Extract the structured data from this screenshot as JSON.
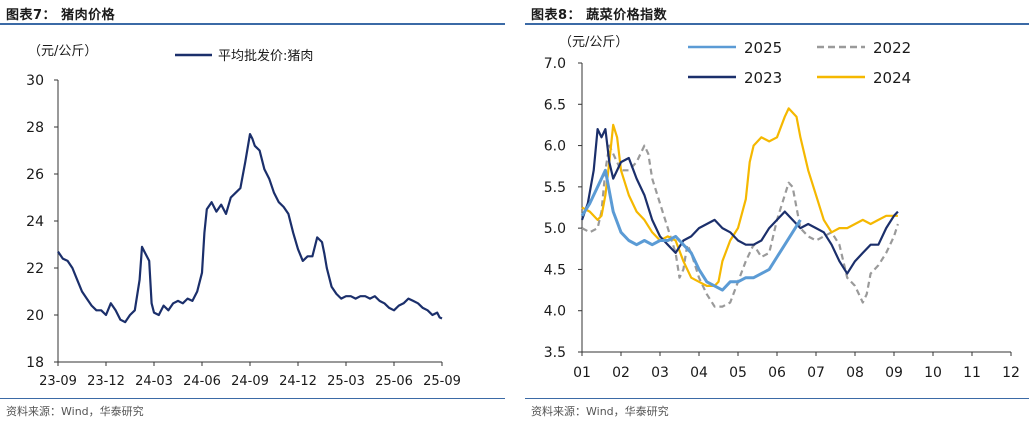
{
  "chart_data": [
    {
      "type": "line",
      "title": "图表7：  猪肉价格",
      "ylabel": "（元/公斤）",
      "source": "资料来源：Wind，华泰研究",
      "ylim": [
        18,
        30
      ],
      "y_ticks": [
        "18",
        "20",
        "22",
        "24",
        "26",
        "28",
        "30"
      ],
      "x_ticks": [
        "23-09",
        "23-12",
        "24-03",
        "24-06",
        "24-09",
        "24-12",
        "25-03",
        "25-06",
        "25-09"
      ],
      "legend": [
        "平均批发价:猪肉"
      ],
      "color": "#1b2f6b",
      "series": [
        {
          "name": "平均批发价:猪肉",
          "points": [
            [
              0.0,
              22.7
            ],
            [
              0.1,
              22.4
            ],
            [
              0.2,
              22.3
            ],
            [
              0.3,
              22.0
            ],
            [
              0.4,
              21.5
            ],
            [
              0.5,
              21.0
            ],
            [
              0.6,
              20.7
            ],
            [
              0.7,
              20.4
            ],
            [
              0.8,
              20.2
            ],
            [
              0.9,
              20.2
            ],
            [
              1.0,
              20.0
            ],
            [
              1.1,
              20.5
            ],
            [
              1.2,
              20.2
            ],
            [
              1.3,
              19.8
            ],
            [
              1.4,
              19.7
            ],
            [
              1.5,
              20.0
            ],
            [
              1.6,
              20.2
            ],
            [
              1.7,
              21.5
            ],
            [
              1.75,
              22.9
            ],
            [
              1.8,
              22.7
            ],
            [
              1.9,
              22.3
            ],
            [
              1.95,
              20.5
            ],
            [
              2.0,
              20.1
            ],
            [
              2.1,
              20.0
            ],
            [
              2.2,
              20.4
            ],
            [
              2.3,
              20.2
            ],
            [
              2.4,
              20.5
            ],
            [
              2.5,
              20.6
            ],
            [
              2.6,
              20.5
            ],
            [
              2.7,
              20.7
            ],
            [
              2.8,
              20.6
            ],
            [
              2.9,
              21.0
            ],
            [
              3.0,
              21.8
            ],
            [
              3.05,
              23.5
            ],
            [
              3.1,
              24.5
            ],
            [
              3.2,
              24.8
            ],
            [
              3.3,
              24.4
            ],
            [
              3.4,
              24.7
            ],
            [
              3.5,
              24.3
            ],
            [
              3.6,
              25.0
            ],
            [
              3.7,
              25.2
            ],
            [
              3.8,
              25.4
            ],
            [
              3.9,
              26.5
            ],
            [
              4.0,
              27.7
            ],
            [
              4.05,
              27.5
            ],
            [
              4.1,
              27.2
            ],
            [
              4.2,
              27.0
            ],
            [
              4.3,
              26.2
            ],
            [
              4.4,
              25.8
            ],
            [
              4.5,
              25.2
            ],
            [
              4.6,
              24.8
            ],
            [
              4.7,
              24.6
            ],
            [
              4.8,
              24.3
            ],
            [
              4.9,
              23.5
            ],
            [
              5.0,
              22.8
            ],
            [
              5.1,
              22.3
            ],
            [
              5.2,
              22.5
            ],
            [
              5.3,
              22.5
            ],
            [
              5.4,
              23.3
            ],
            [
              5.5,
              23.1
            ],
            [
              5.55,
              22.6
            ],
            [
              5.6,
              22.0
            ],
            [
              5.7,
              21.2
            ],
            [
              5.8,
              20.9
            ],
            [
              5.9,
              20.7
            ],
            [
              6.0,
              20.8
            ],
            [
              6.1,
              20.8
            ],
            [
              6.2,
              20.7
            ],
            [
              6.3,
              20.8
            ],
            [
              6.4,
              20.8
            ],
            [
              6.5,
              20.7
            ],
            [
              6.6,
              20.8
            ],
            [
              6.7,
              20.6
            ],
            [
              6.8,
              20.5
            ],
            [
              6.9,
              20.3
            ],
            [
              7.0,
              20.2
            ],
            [
              7.1,
              20.4
            ],
            [
              7.2,
              20.5
            ],
            [
              7.3,
              20.7
            ],
            [
              7.4,
              20.6
            ],
            [
              7.5,
              20.5
            ],
            [
              7.6,
              20.3
            ],
            [
              7.7,
              20.2
            ],
            [
              7.8,
              20.0
            ],
            [
              7.9,
              20.1
            ],
            [
              7.95,
              19.9
            ],
            [
              8.0,
              19.85
            ]
          ]
        }
      ]
    },
    {
      "type": "line",
      "title": "图表8：  蔬菜价格指数",
      "ylabel": "（元/公斤）",
      "source": "资料来源：Wind，华泰研究",
      "ylim": [
        3.5,
        7.0
      ],
      "y_ticks": [
        "3.5",
        "4.0",
        "4.5",
        "5.0",
        "5.5",
        "6.0",
        "6.5",
        "7.0"
      ],
      "x_ticks": [
        "01",
        "02",
        "03",
        "04",
        "05",
        "06",
        "07",
        "08",
        "09",
        "10",
        "11",
        "12"
      ],
      "legend": [
        "2025",
        "2022",
        "2023",
        "2024"
      ],
      "series": [
        {
          "name": "2025",
          "color": "#5b9bd5",
          "dash": false,
          "points": [
            [
              1.0,
              5.15
            ],
            [
              1.2,
              5.3
            ],
            [
              1.4,
              5.5
            ],
            [
              1.6,
              5.7
            ],
            [
              1.8,
              5.2
            ],
            [
              2.0,
              4.95
            ],
            [
              2.2,
              4.85
            ],
            [
              2.4,
              4.8
            ],
            [
              2.6,
              4.85
            ],
            [
              2.8,
              4.8
            ],
            [
              3.0,
              4.85
            ],
            [
              3.2,
              4.85
            ],
            [
              3.4,
              4.9
            ],
            [
              3.6,
              4.8
            ],
            [
              3.8,
              4.7
            ],
            [
              4.0,
              4.5
            ],
            [
              4.2,
              4.35
            ],
            [
              4.4,
              4.3
            ],
            [
              4.6,
              4.25
            ],
            [
              4.8,
              4.35
            ],
            [
              5.0,
              4.35
            ],
            [
              5.2,
              4.4
            ],
            [
              5.4,
              4.4
            ],
            [
              5.6,
              4.45
            ],
            [
              5.8,
              4.5
            ],
            [
              6.0,
              4.65
            ],
            [
              6.2,
              4.8
            ],
            [
              6.4,
              4.95
            ],
            [
              6.6,
              5.1
            ]
          ]
        },
        {
          "name": "2022",
          "color": "#9a9a9a",
          "dash": true,
          "points": [
            [
              1.0,
              5.0
            ],
            [
              1.2,
              4.95
            ],
            [
              1.4,
              5.0
            ],
            [
              1.5,
              5.2
            ],
            [
              1.6,
              5.7
            ],
            [
              1.7,
              6.0
            ],
            [
              1.8,
              5.9
            ],
            [
              1.9,
              5.8
            ],
            [
              2.0,
              5.7
            ],
            [
              2.2,
              5.7
            ],
            [
              2.4,
              5.8
            ],
            [
              2.6,
              6.0
            ],
            [
              2.7,
              5.9
            ],
            [
              2.8,
              5.6
            ],
            [
              3.0,
              5.3
            ],
            [
              3.2,
              5.0
            ],
            [
              3.4,
              4.7
            ],
            [
              3.5,
              4.4
            ],
            [
              3.6,
              4.5
            ],
            [
              3.7,
              4.8
            ],
            [
              3.8,
              4.7
            ],
            [
              4.0,
              4.4
            ],
            [
              4.2,
              4.2
            ],
            [
              4.4,
              4.05
            ],
            [
              4.6,
              4.05
            ],
            [
              4.8,
              4.1
            ],
            [
              5.0,
              4.35
            ],
            [
              5.2,
              4.6
            ],
            [
              5.4,
              4.8
            ],
            [
              5.6,
              4.65
            ],
            [
              5.8,
              4.7
            ],
            [
              6.0,
              5.1
            ],
            [
              6.2,
              5.4
            ],
            [
              6.3,
              5.55
            ],
            [
              6.4,
              5.5
            ],
            [
              6.6,
              5.0
            ],
            [
              6.8,
              4.9
            ],
            [
              7.0,
              4.85
            ],
            [
              7.2,
              4.9
            ],
            [
              7.4,
              4.95
            ],
            [
              7.6,
              4.8
            ],
            [
              7.8,
              4.4
            ],
            [
              8.0,
              4.3
            ],
            [
              8.1,
              4.2
            ],
            [
              8.2,
              4.1
            ],
            [
              8.3,
              4.2
            ],
            [
              8.4,
              4.45
            ],
            [
              8.6,
              4.55
            ],
            [
              8.8,
              4.7
            ],
            [
              9.0,
              4.9
            ],
            [
              9.1,
              5.05
            ]
          ]
        },
        {
          "name": "2023",
          "color": "#1b2f6b",
          "dash": false,
          "points": [
            [
              1.0,
              5.1
            ],
            [
              1.15,
              5.3
            ],
            [
              1.3,
              5.7
            ],
            [
              1.4,
              6.2
            ],
            [
              1.5,
              6.1
            ],
            [
              1.6,
              6.2
            ],
            [
              1.7,
              5.8
            ],
            [
              1.8,
              5.6
            ],
            [
              2.0,
              5.8
            ],
            [
              2.2,
              5.85
            ],
            [
              2.4,
              5.6
            ],
            [
              2.6,
              5.4
            ],
            [
              2.8,
              5.1
            ],
            [
              3.0,
              4.9
            ],
            [
              3.2,
              4.8
            ],
            [
              3.4,
              4.7
            ],
            [
              3.6,
              4.85
            ],
            [
              3.8,
              4.9
            ],
            [
              4.0,
              5.0
            ],
            [
              4.2,
              5.05
            ],
            [
              4.4,
              5.1
            ],
            [
              4.6,
              5.0
            ],
            [
              4.8,
              4.95
            ],
            [
              5.0,
              4.85
            ],
            [
              5.2,
              4.8
            ],
            [
              5.4,
              4.8
            ],
            [
              5.6,
              4.85
            ],
            [
              5.8,
              5.0
            ],
            [
              6.0,
              5.1
            ],
            [
              6.2,
              5.2
            ],
            [
              6.4,
              5.1
            ],
            [
              6.6,
              5.0
            ],
            [
              6.8,
              5.05
            ],
            [
              7.0,
              5.0
            ],
            [
              7.2,
              4.95
            ],
            [
              7.4,
              4.8
            ],
            [
              7.6,
              4.6
            ],
            [
              7.8,
              4.45
            ],
            [
              8.0,
              4.6
            ],
            [
              8.2,
              4.7
            ],
            [
              8.4,
              4.8
            ],
            [
              8.6,
              4.8
            ],
            [
              8.8,
              5.0
            ],
            [
              9.0,
              5.15
            ],
            [
              9.1,
              5.2
            ]
          ]
        },
        {
          "name": "2024",
          "color": "#f5b800",
          "dash": false,
          "points": [
            [
              1.0,
              5.25
            ],
            [
              1.2,
              5.2
            ],
            [
              1.4,
              5.1
            ],
            [
              1.5,
              5.15
            ],
            [
              1.6,
              5.4
            ],
            [
              1.7,
              5.8
            ],
            [
              1.8,
              6.25
            ],
            [
              1.9,
              6.1
            ],
            [
              2.0,
              5.7
            ],
            [
              2.2,
              5.4
            ],
            [
              2.4,
              5.2
            ],
            [
              2.6,
              5.1
            ],
            [
              2.8,
              4.95
            ],
            [
              3.0,
              4.85
            ],
            [
              3.2,
              4.9
            ],
            [
              3.4,
              4.85
            ],
            [
              3.6,
              4.6
            ],
            [
              3.8,
              4.4
            ],
            [
              4.0,
              4.35
            ],
            [
              4.2,
              4.3
            ],
            [
              4.4,
              4.3
            ],
            [
              4.5,
              4.35
            ],
            [
              4.6,
              4.6
            ],
            [
              4.8,
              4.85
            ],
            [
              5.0,
              5.0
            ],
            [
              5.2,
              5.35
            ],
            [
              5.3,
              5.8
            ],
            [
              5.4,
              6.0
            ],
            [
              5.6,
              6.1
            ],
            [
              5.8,
              6.05
            ],
            [
              6.0,
              6.1
            ],
            [
              6.2,
              6.35
            ],
            [
              6.3,
              6.45
            ],
            [
              6.5,
              6.35
            ],
            [
              6.6,
              6.1
            ],
            [
              6.8,
              5.7
            ],
            [
              7.0,
              5.4
            ],
            [
              7.2,
              5.1
            ],
            [
              7.4,
              4.95
            ],
            [
              7.6,
              5.0
            ],
            [
              7.8,
              5.0
            ],
            [
              8.0,
              5.05
            ],
            [
              8.2,
              5.1
            ],
            [
              8.4,
              5.05
            ],
            [
              8.6,
              5.1
            ],
            [
              8.8,
              5.15
            ],
            [
              9.0,
              5.15
            ],
            [
              9.1,
              5.15
            ]
          ]
        }
      ]
    }
  ]
}
